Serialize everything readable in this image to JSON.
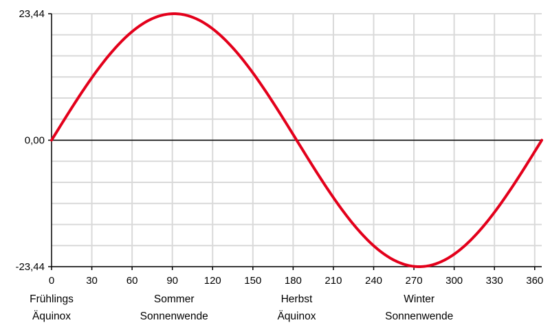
{
  "chart_data": {
    "type": "line",
    "title": "",
    "xlabel": "",
    "ylabel": "",
    "xlim": [
      0,
      365.25
    ],
    "ylim": [
      -23.44,
      23.44
    ],
    "x_ticks": [
      0,
      30,
      60,
      90,
      120,
      150,
      180,
      210,
      240,
      270,
      300,
      330,
      360
    ],
    "y_ticks": [
      {
        "value": 23.44,
        "label": "23,44"
      },
      {
        "value": 0,
        "label": "0,00"
      },
      {
        "value": -23.44,
        "label": "-23,44"
      }
    ],
    "grid": true,
    "series": [
      {
        "color": "#e3001b",
        "x": [
          0,
          15,
          30,
          45,
          60,
          75,
          91.3,
          105,
          120,
          135,
          150,
          165,
          182.6,
          195,
          210,
          225,
          240,
          255,
          273.9,
          285,
          300,
          315,
          330,
          345,
          365.25
        ],
        "y": [
          0,
          6.01,
          11.61,
          16.4,
          20.09,
          22.44,
          23.44,
          22.64,
          20.48,
          16.94,
          12.27,
          6.72,
          0,
          -4.98,
          -10.87,
          -15.8,
          -19.65,
          -22.22,
          -23.44,
          -22.92,
          -21.14,
          -18.0,
          -13.63,
          -8.3,
          0
        ]
      }
    ],
    "annotations": [
      {
        "x": 0,
        "line1": "Frühlings",
        "line2": "Äquinox"
      },
      {
        "x": 91.3,
        "line1": "Sommer",
        "line2": "Sonnenwende"
      },
      {
        "x": 182.6,
        "line1": "Herbst",
        "line2": "Äquinox"
      },
      {
        "x": 273.9,
        "line1": "Winter",
        "line2": "Sonnenwende"
      }
    ],
    "colors": {
      "line": "#e3001b",
      "grid": "#d9d9d9",
      "axis": "#000000"
    }
  }
}
